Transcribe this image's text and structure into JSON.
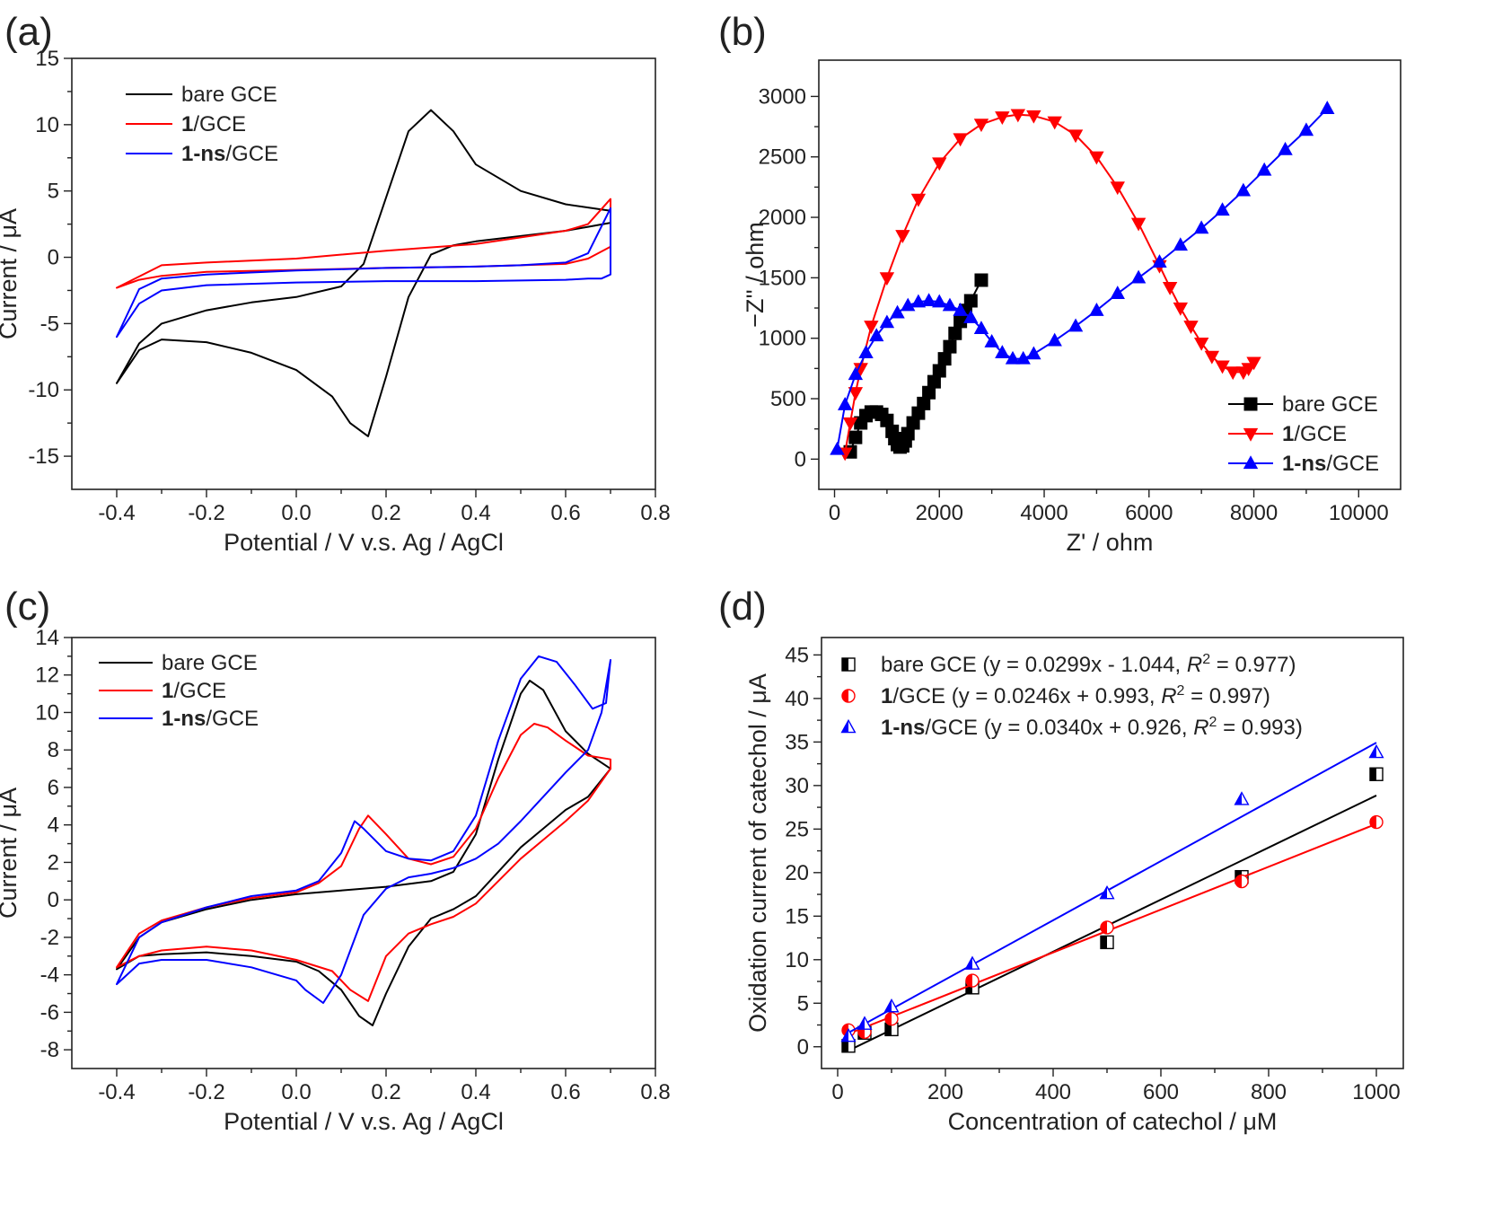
{
  "chart_data": [
    {
      "id": "a",
      "panel_label": "(a)",
      "type": "line",
      "xlabel": "Potential / V v.s. Ag / AgCl",
      "ylabel": "Current / μA",
      "xlim": [
        -0.5,
        0.8
      ],
      "ylim": [
        -17.5,
        15
      ],
      "xticks": [
        -0.4,
        -0.2,
        0.0,
        0.2,
        0.4,
        0.6,
        0.8
      ],
      "xtick_labels": [
        "-0.4",
        "-0.2",
        "0.0",
        "0.2",
        "0.4",
        "0.6",
        "0.8"
      ],
      "yticks": [
        -15,
        -10,
        -5,
        0,
        5,
        10,
        15
      ],
      "ytick_labels": [
        "-15",
        "-10",
        "-5",
        "0",
        "5",
        "10",
        "15"
      ],
      "legend_position": "top-left",
      "series": [
        {
          "name": "bare GCE",
          "name_bold": "",
          "name_rest": "bare GCE",
          "color": "#000000",
          "marker": "none",
          "x": [
            -0.4,
            -0.35,
            -0.3,
            -0.2,
            -0.1,
            0.0,
            0.1,
            0.15,
            0.2,
            0.25,
            0.3,
            0.35,
            0.4,
            0.5,
            0.6,
            0.7,
            0.7,
            0.65,
            0.6,
            0.5,
            0.4,
            0.35,
            0.3,
            0.25,
            0.2,
            0.16,
            0.12,
            0.08,
            0.0,
            -0.1,
            -0.2,
            -0.3,
            -0.35,
            -0.4
          ],
          "y": [
            -9.5,
            -6.5,
            -5.0,
            -4.0,
            -3.4,
            -3.0,
            -2.2,
            -0.5,
            4.5,
            9.5,
            11.1,
            9.5,
            7.0,
            5.0,
            4.0,
            3.5,
            2.6,
            2.3,
            2.0,
            1.6,
            1.2,
            0.9,
            0.2,
            -3.0,
            -9.0,
            -13.5,
            -12.5,
            -10.5,
            -8.5,
            -7.2,
            -6.4,
            -6.2,
            -7.0,
            -9.5
          ]
        },
        {
          "name": "1/GCE",
          "name_bold": "1",
          "name_rest": "/GCE",
          "color": "#ff0000",
          "marker": "none",
          "x": [
            -0.4,
            -0.35,
            -0.3,
            -0.2,
            0.0,
            0.2,
            0.4,
            0.6,
            0.65,
            0.7,
            0.7,
            0.65,
            0.6,
            0.4,
            0.2,
            0.0,
            -0.2,
            -0.3,
            -0.4
          ],
          "y": [
            -2.3,
            -1.7,
            -1.4,
            -1.1,
            -0.95,
            -0.8,
            -0.7,
            -0.5,
            -0.1,
            0.8,
            4.4,
            2.5,
            2.0,
            1.0,
            0.5,
            -0.1,
            -0.4,
            -0.6,
            -2.3
          ]
        },
        {
          "name": "1-ns/GCE",
          "name_bold": "1-ns",
          "name_rest": "/GCE",
          "color": "#0000ff",
          "marker": "none",
          "x": [
            -0.4,
            -0.35,
            -0.3,
            -0.2,
            0.0,
            0.2,
            0.4,
            0.6,
            0.65,
            0.68,
            0.7,
            0.7,
            0.65,
            0.6,
            0.5,
            0.4,
            0.2,
            0.0,
            -0.2,
            -0.3,
            -0.35,
            -0.4
          ],
          "y": [
            -6.0,
            -3.5,
            -2.5,
            -2.1,
            -1.9,
            -1.8,
            -1.8,
            -1.7,
            -1.6,
            -1.6,
            -1.3,
            3.7,
            0.3,
            -0.4,
            -0.6,
            -0.7,
            -0.8,
            -1.0,
            -1.3,
            -1.6,
            -2.4,
            -6.0
          ]
        }
      ]
    },
    {
      "id": "b",
      "panel_label": "(b)",
      "type": "scatter",
      "xlabel": "Z' / ohm",
      "ylabel": "−Z'' / ohm",
      "xlim": [
        -300,
        10800
      ],
      "ylim": [
        -250,
        3300
      ],
      "xticks": [
        0,
        2000,
        4000,
        6000,
        8000,
        10000
      ],
      "xtick_labels": [
        "0",
        "2000",
        "4000",
        "6000",
        "8000",
        "10000"
      ],
      "yticks": [
        0,
        500,
        1000,
        1500,
        2000,
        2500,
        3000
      ],
      "ytick_labels": [
        "0",
        "500",
        "1000",
        "1500",
        "2000",
        "2500",
        "3000"
      ],
      "legend_position": "bottom-right",
      "series": [
        {
          "name": "bare GCE",
          "name_bold": "",
          "name_rest": "bare GCE",
          "color": "#000000",
          "marker": "square",
          "x": [
            300,
            400,
            500,
            600,
            700,
            800,
            900,
            1000,
            1100,
            1150,
            1200,
            1250,
            1300,
            1350,
            1400,
            1500,
            1600,
            1700,
            1800,
            1900,
            2000,
            2100,
            2200,
            2300,
            2400,
            2500,
            2600,
            2800
          ],
          "y": [
            60,
            180,
            300,
            360,
            390,
            390,
            370,
            320,
            230,
            170,
            120,
            100,
            110,
            150,
            210,
            300,
            380,
            460,
            550,
            640,
            730,
            830,
            930,
            1040,
            1140,
            1230,
            1310,
            1480
          ]
        },
        {
          "name": "1/GCE",
          "name_bold": "1",
          "name_rest": "/GCE",
          "color": "#ff0000",
          "marker": "triangle-down",
          "x": [
            200,
            300,
            400,
            500,
            700,
            1000,
            1300,
            1600,
            2000,
            2400,
            2800,
            3200,
            3500,
            3800,
            4200,
            4600,
            5000,
            5400,
            5800,
            6200,
            6400,
            6600,
            6800,
            7000,
            7200,
            7400,
            7600,
            7800,
            7900,
            8000
          ],
          "y": [
            50,
            300,
            550,
            750,
            1100,
            1500,
            1850,
            2150,
            2450,
            2650,
            2770,
            2830,
            2850,
            2840,
            2790,
            2680,
            2500,
            2250,
            1950,
            1600,
            1420,
            1250,
            1100,
            960,
            850,
            770,
            720,
            720,
            750,
            800
          ]
        },
        {
          "name": "1-ns/GCE",
          "name_bold": "1-ns",
          "name_rest": "/GCE",
          "color": "#0000ff",
          "marker": "triangle-up",
          "x": [
            50,
            200,
            400,
            600,
            800,
            1000,
            1200,
            1400,
            1600,
            1800,
            2000,
            2200,
            2400,
            2600,
            2800,
            3000,
            3200,
            3400,
            3600,
            3800,
            4200,
            4600,
            5000,
            5400,
            5800,
            6200,
            6600,
            7000,
            7400,
            7800,
            8200,
            8600,
            9000,
            9400
          ],
          "y": [
            80,
            450,
            700,
            880,
            1020,
            1130,
            1210,
            1270,
            1300,
            1310,
            1300,
            1270,
            1230,
            1170,
            1080,
            970,
            880,
            830,
            830,
            870,
            980,
            1100,
            1230,
            1370,
            1500,
            1630,
            1770,
            1910,
            2060,
            2220,
            2390,
            2560,
            2720,
            2900
          ]
        }
      ]
    },
    {
      "id": "c",
      "panel_label": "(c)",
      "type": "line",
      "xlabel": "Potential / V v.s. Ag / AgCl",
      "ylabel": "Current / μA",
      "xlim": [
        -0.5,
        0.8
      ],
      "ylim": [
        -9,
        14
      ],
      "xticks": [
        -0.4,
        -0.2,
        0.0,
        0.2,
        0.4,
        0.6,
        0.8
      ],
      "xtick_labels": [
        "-0.4",
        "-0.2",
        "0.0",
        "0.2",
        "0.4",
        "0.6",
        "0.8"
      ],
      "yticks": [
        -8,
        -6,
        -4,
        -2,
        0,
        2,
        4,
        6,
        8,
        10,
        12,
        14
      ],
      "ytick_labels": [
        "-8",
        "-6",
        "-4",
        "-2",
        "0",
        "2",
        "4",
        "6",
        "8",
        "10",
        "12",
        "14"
      ],
      "legend_position": "top-left",
      "series": [
        {
          "name": "bare GCE",
          "name_bold": "",
          "name_rest": "bare GCE",
          "color": "#000000",
          "marker": "none",
          "x": [
            -0.4,
            -0.35,
            -0.3,
            -0.2,
            -0.1,
            0.0,
            0.1,
            0.2,
            0.3,
            0.35,
            0.4,
            0.45,
            0.5,
            0.52,
            0.55,
            0.6,
            0.65,
            0.7,
            0.7,
            0.65,
            0.6,
            0.55,
            0.5,
            0.45,
            0.4,
            0.35,
            0.3,
            0.25,
            0.2,
            0.17,
            0.14,
            0.1,
            0.05,
            0.0,
            -0.1,
            -0.2,
            -0.3,
            -0.35,
            -0.4
          ],
          "y": [
            -3.7,
            -2.0,
            -1.2,
            -0.5,
            0.0,
            0.3,
            0.5,
            0.7,
            1.0,
            1.5,
            3.5,
            7.5,
            11.0,
            11.7,
            11.2,
            9.0,
            7.8,
            7.0,
            7.0,
            5.5,
            4.8,
            3.8,
            2.8,
            1.5,
            0.2,
            -0.5,
            -1.0,
            -2.5,
            -5.0,
            -6.7,
            -6.2,
            -4.8,
            -3.8,
            -3.3,
            -3.0,
            -2.8,
            -2.9,
            -3.0,
            -3.7
          ]
        },
        {
          "name": "1/GCE",
          "name_bold": "1",
          "name_rest": "/GCE",
          "color": "#ff0000",
          "marker": "none",
          "x": [
            -0.4,
            -0.35,
            -0.3,
            -0.2,
            -0.1,
            0.0,
            0.05,
            0.1,
            0.14,
            0.16,
            0.2,
            0.25,
            0.3,
            0.35,
            0.4,
            0.45,
            0.5,
            0.53,
            0.56,
            0.6,
            0.65,
            0.7,
            0.7,
            0.65,
            0.6,
            0.55,
            0.5,
            0.45,
            0.4,
            0.35,
            0.3,
            0.25,
            0.2,
            0.16,
            0.12,
            0.08,
            0.0,
            -0.1,
            -0.2,
            -0.3,
            -0.35,
            -0.4
          ],
          "y": [
            -3.6,
            -1.8,
            -1.1,
            -0.4,
            0.1,
            0.4,
            0.9,
            1.8,
            3.8,
            4.5,
            3.5,
            2.2,
            1.9,
            2.3,
            3.8,
            6.5,
            8.8,
            9.4,
            9.2,
            8.5,
            7.7,
            7.5,
            7.0,
            5.3,
            4.2,
            3.2,
            2.2,
            1.0,
            -0.2,
            -0.9,
            -1.3,
            -1.8,
            -3.0,
            -5.4,
            -4.8,
            -3.8,
            -3.2,
            -2.7,
            -2.5,
            -2.7,
            -3.0,
            -3.6
          ]
        },
        {
          "name": "1-ns/GCE",
          "name_bold": "1-ns",
          "name_rest": "/GCE",
          "color": "#0000ff",
          "marker": "none",
          "x": [
            -0.4,
            -0.35,
            -0.3,
            -0.2,
            -0.1,
            0.0,
            0.05,
            0.1,
            0.13,
            0.15,
            0.2,
            0.25,
            0.3,
            0.35,
            0.4,
            0.45,
            0.5,
            0.54,
            0.58,
            0.62,
            0.66,
            0.69,
            0.7,
            0.68,
            0.65,
            0.6,
            0.55,
            0.5,
            0.45,
            0.4,
            0.35,
            0.3,
            0.25,
            0.2,
            0.15,
            0.1,
            0.06,
            0.02,
            0.0,
            -0.1,
            -0.2,
            -0.3,
            -0.35,
            -0.4
          ],
          "y": [
            -4.5,
            -2.0,
            -1.2,
            -0.4,
            0.2,
            0.5,
            1.0,
            2.5,
            4.2,
            3.8,
            2.6,
            2.2,
            2.1,
            2.6,
            4.5,
            8.5,
            11.8,
            13.0,
            12.7,
            11.5,
            10.2,
            10.5,
            12.8,
            10.0,
            8.0,
            6.8,
            5.5,
            4.2,
            3.0,
            2.2,
            1.7,
            1.4,
            1.2,
            0.6,
            -0.8,
            -4.0,
            -5.5,
            -4.8,
            -4.3,
            -3.6,
            -3.2,
            -3.2,
            -3.4,
            -4.5
          ]
        }
      ]
    },
    {
      "id": "d",
      "panel_label": "(d)",
      "type": "scatter",
      "xlabel": "Concentration of catechol / μM",
      "ylabel": "Oxidation current of catechol / μA",
      "xlim": [
        -30,
        1050
      ],
      "ylim": [
        -2.5,
        47
      ],
      "xticks": [
        0,
        200,
        400,
        600,
        800,
        1000
      ],
      "xtick_labels": [
        "0",
        "200",
        "400",
        "600",
        "800",
        "1000"
      ],
      "yticks": [
        0,
        5,
        10,
        15,
        20,
        25,
        30,
        35,
        40,
        45
      ],
      "ytick_labels": [
        "0",
        "5",
        "10",
        "15",
        "20",
        "25",
        "30",
        "35",
        "40",
        "45"
      ],
      "legend_position": "top-left",
      "series": [
        {
          "name": "bare GCE",
          "name_bold": "",
          "name_rest": "bare GCE (y = 0.0299x - 1.044, ",
          "r2": " = 0.977)",
          "color": "#000000",
          "marker": "half-square",
          "x": [
            20,
            50,
            100,
            250,
            500,
            750,
            1000
          ],
          "y": [
            0.1,
            1.6,
            2.0,
            6.8,
            12.0,
            19.5,
            31.3
          ],
          "fit": {
            "slope": 0.0299,
            "intercept": -1.044,
            "r2": 0.977
          }
        },
        {
          "name": "1/GCE",
          "name_bold": "1",
          "name_rest": "/GCE (y = 0.0246x + 0.993, ",
          "r2": " = 0.997)",
          "color": "#ff0000",
          "marker": "half-circle",
          "x": [
            20,
            50,
            100,
            250,
            500,
            750,
            1000
          ],
          "y": [
            1.9,
            1.7,
            3.2,
            7.6,
            13.7,
            19.0,
            25.8
          ],
          "fit": {
            "slope": 0.0246,
            "intercept": 0.993,
            "r2": 0.997
          }
        },
        {
          "name": "1-ns/GCE",
          "name_bold": "1-ns",
          "name_rest": "/GCE (y = 0.0340x + 0.926, ",
          "r2": " = 0.993)",
          "color": "#0000ff",
          "marker": "half-triangle",
          "x": [
            20,
            50,
            100,
            250,
            500,
            750,
            1000
          ],
          "y": [
            1.2,
            2.6,
            4.6,
            9.5,
            17.6,
            28.4,
            33.8
          ],
          "fit": {
            "slope": 0.034,
            "intercept": 0.926,
            "r2": 0.993
          }
        }
      ]
    }
  ]
}
